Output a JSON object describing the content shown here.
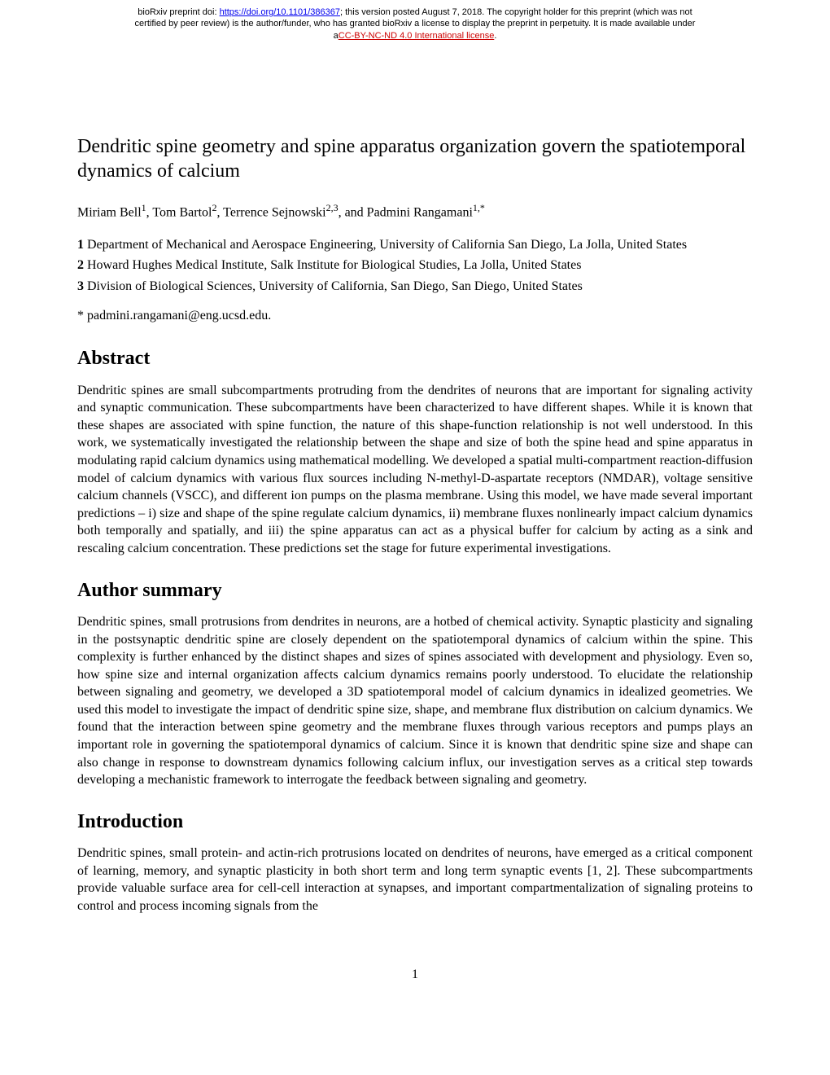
{
  "preprint_header": {
    "line1_prefix": "bioRxiv preprint doi: ",
    "doi_url": "https://doi.org/10.1101/386367",
    "line1_suffix": "; this version posted August 7, 2018. The copyright holder for this preprint (which was not",
    "line2": "certified by peer review) is the author/funder, who has granted bioRxiv a license to display the preprint in perpetuity. It is made available under",
    "license_prefix": "a",
    "license_text": "CC-BY-NC-ND 4.0 International license",
    "license_suffix": "."
  },
  "title": "Dendritic spine geometry and spine apparatus organization govern the spatiotemporal dynamics of calcium",
  "authors_html": "Miriam Bell¹, Tom Bartol², Terrence Sejnowski²,³, and Padmini Rangamani¹,*",
  "affiliations": [
    {
      "num": "1",
      "text": " Department of Mechanical and Aerospace Engineering, University of California San Diego, La Jolla, United States"
    },
    {
      "num": "2",
      "text": " Howard Hughes Medical Institute, Salk Institute for Biological Studies, La Jolla, United States"
    },
    {
      "num": "3",
      "text": " Division of Biological Sciences, University of California, San Diego, San Diego, United States"
    }
  ],
  "correspondence": "* padmini.rangamani@eng.ucsd.edu.",
  "sections": {
    "abstract": {
      "heading": "Abstract",
      "text": "Dendritic spines are small subcompartments protruding from the dendrites of neurons that are important for signaling activity and synaptic communication. These subcompartments have been characterized to have different shapes. While it is known that these shapes are associated with spine function, the nature of this shape-function relationship is not well understood. In this work, we systematically investigated the relationship between the shape and size of both the spine head and spine apparatus in modulating rapid calcium dynamics using mathematical modelling. We developed a spatial multi-compartment reaction-diffusion model of calcium dynamics with various flux sources including N-methyl-D-aspartate receptors (NMDAR), voltage sensitive calcium channels (VSCC), and different ion pumps on the plasma membrane. Using this model, we have made several important predictions – i) size and shape of the spine regulate calcium dynamics, ii) membrane fluxes nonlinearly impact calcium dynamics both temporally and spatially, and iii) the spine apparatus can act as a physical buffer for calcium by acting as a sink and rescaling calcium concentration. These predictions set the stage for future experimental investigations."
    },
    "author_summary": {
      "heading": "Author summary",
      "text": "Dendritic spines, small protrusions from dendrites in neurons, are a hotbed of chemical activity. Synaptic plasticity and signaling in the postsynaptic dendritic spine are closely dependent on the spatiotemporal dynamics of calcium within the spine. This complexity is further enhanced by the distinct shapes and sizes of spines associated with development and physiology. Even so, how spine size and internal organization affects calcium dynamics remains poorly understood. To elucidate the relationship between signaling and geometry, we developed a 3D spatiotemporal model of calcium dynamics in idealized geometries. We used this model to investigate the impact of dendritic spine size, shape, and membrane flux distribution on calcium dynamics. We found that the interaction between spine geometry and the membrane fluxes through various receptors and pumps plays an important role in governing the spatiotemporal dynamics of calcium. Since it is known that dendritic spine size and shape can also change in response to downstream dynamics following calcium influx, our investigation serves as a critical step towards developing a mechanistic framework to interrogate the feedback between signaling and geometry."
    },
    "introduction": {
      "heading": "Introduction",
      "text": "Dendritic spines, small protein- and actin-rich protrusions located on dendrites of neurons, have emerged as a critical component of learning, memory, and synaptic plasticity in both short term and long term synaptic events [1, 2]. These subcompartments provide valuable surface area for cell-cell interaction at synapses, and important compartmentalization of signaling proteins to control and process incoming signals from the"
    }
  },
  "page_number": "1"
}
